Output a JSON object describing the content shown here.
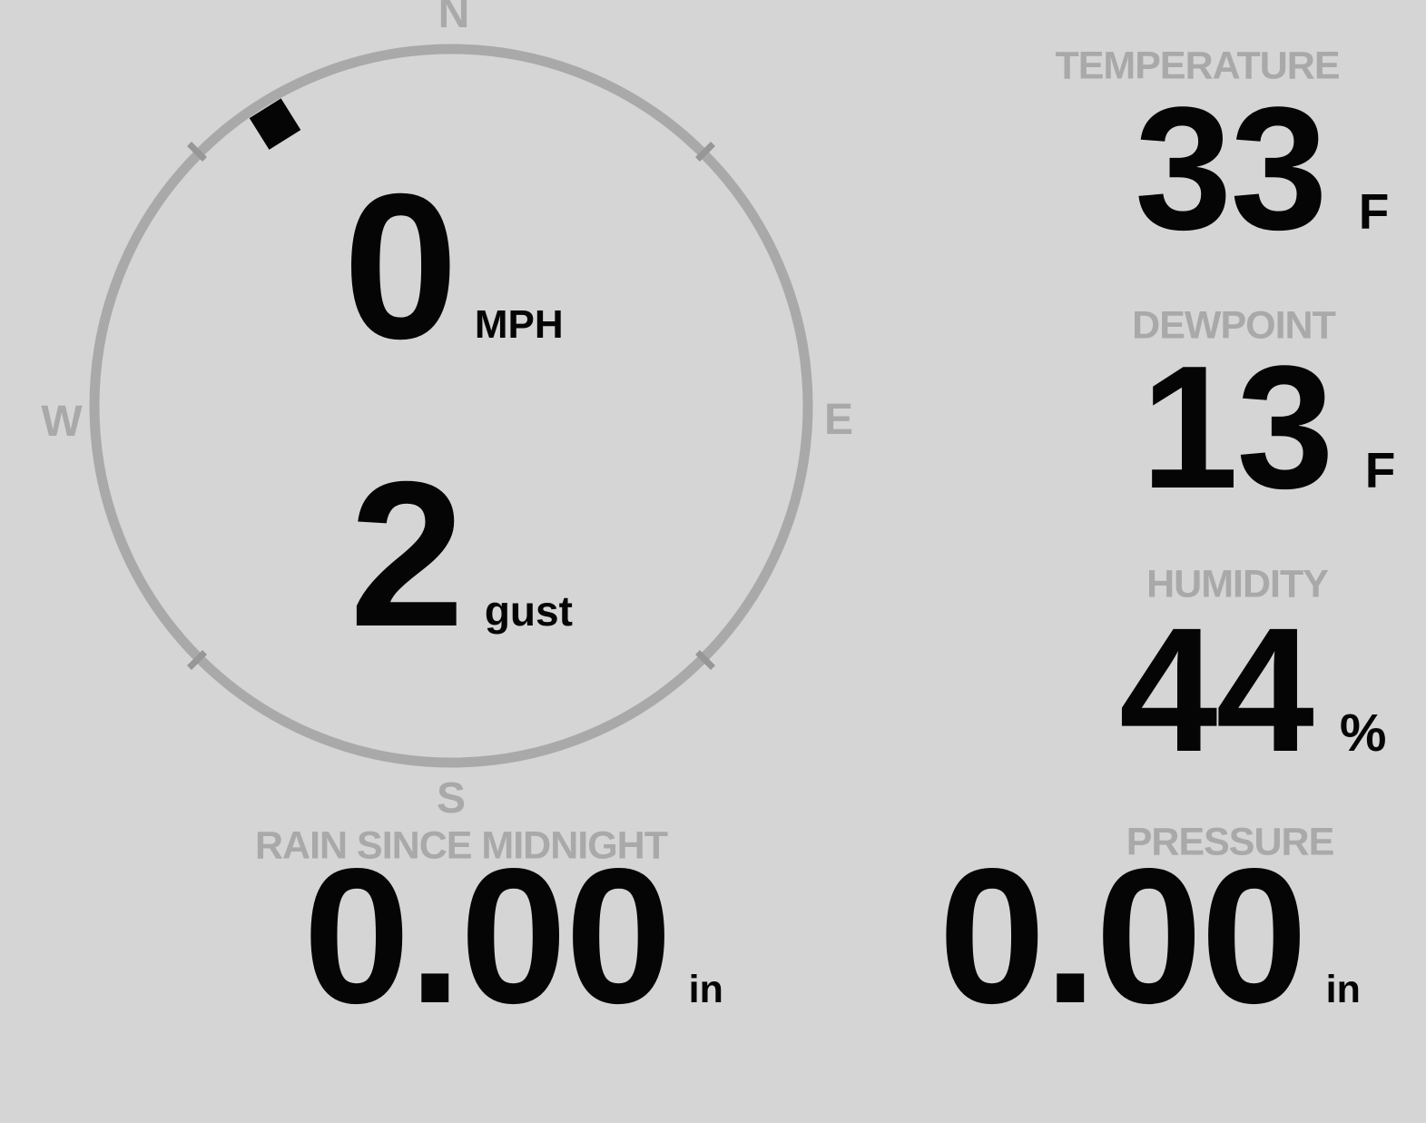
{
  "theme": {
    "background": "#d5d5d5",
    "muted_gray": "#a9a9a9",
    "value_black": "#050505"
  },
  "wind": {
    "compass": {
      "north": "N",
      "east": "E",
      "south": "S",
      "west": "W"
    },
    "direction_deg": 328,
    "speed": {
      "value": "0",
      "unit": "MPH"
    },
    "gust": {
      "value": "2",
      "unit": "gust"
    }
  },
  "temperature": {
    "label": "TEMPERATURE",
    "value": "33",
    "unit": "F"
  },
  "dewpoint": {
    "label": "DEWPOINT",
    "value": "13",
    "unit": "F"
  },
  "humidity": {
    "label": "HUMIDITY",
    "value": "44",
    "unit": "%"
  },
  "rain": {
    "label": "RAIN SINCE MIDNIGHT",
    "value": "0.00",
    "unit": "in"
  },
  "pressure": {
    "label": "PRESSURE",
    "value": "0.00",
    "unit": "in"
  }
}
